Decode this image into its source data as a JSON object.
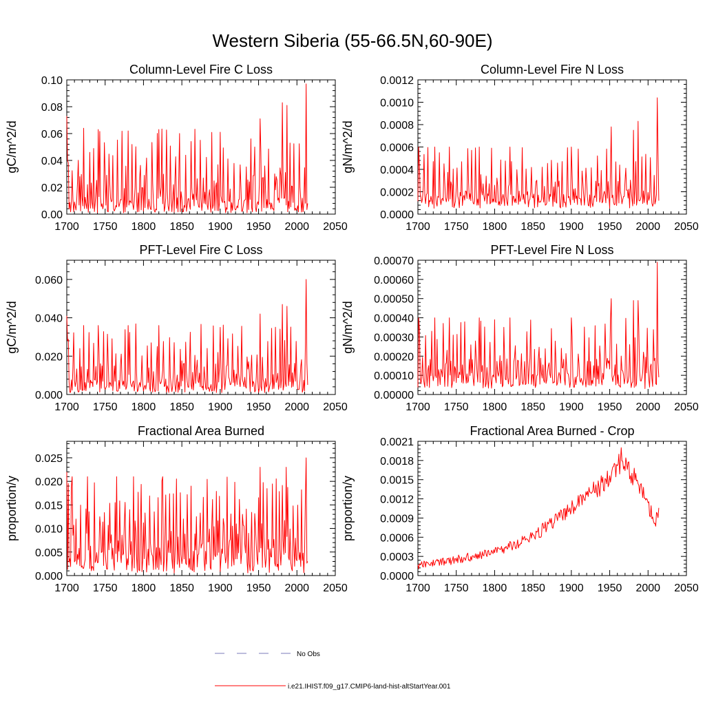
{
  "figure_title": "Western Siberia (55-66.5N,60-90E)",
  "colors": {
    "model": "#ff0000",
    "obs": "#7a7ab8",
    "axis": "#000000"
  },
  "legend": [
    {
      "label": "No Obs",
      "style": "dashed",
      "color": "#7a7ab8"
    },
    {
      "label": "i.e21.IHIST.f09_g17.CMIP6-land-hist-altStartYear.001",
      "style": "solid",
      "color": "#ff0000"
    }
  ],
  "chart_data": [
    {
      "type": "line",
      "title": "Column-Level Fire C Loss",
      "ylabel": "gC/m^2/d",
      "xlim": [
        1700,
        2050
      ],
      "xticks": [
        "1700",
        "1750",
        "1800",
        "1850",
        "1900",
        "1950",
        "2000",
        "2050"
      ],
      "ylim": [
        0,
        0.1
      ],
      "yticks": [
        "0.00",
        "0.02",
        "0.04",
        "0.06",
        "0.08",
        "0.10"
      ],
      "series": [
        {
          "color": "#ff0000",
          "x_range": [
            1700,
            2014
          ],
          "base": [
            0.001,
            0.012
          ],
          "spike_every": 7,
          "spike_range": [
            0.03,
            0.064
          ],
          "peaks": [
            [
              1700,
              0.073
            ],
            [
              1701,
              0.04
            ],
            [
              1722,
              0.064
            ],
            [
              1741,
              0.063
            ],
            [
              1780,
              0.062
            ],
            [
              1820,
              0.063
            ],
            [
              1900,
              0.061
            ],
            [
              1952,
              0.071
            ],
            [
              1981,
              0.083
            ],
            [
              1987,
              0.081
            ],
            [
              2012,
              0.097
            ],
            [
              2014,
              0.008
            ]
          ]
        }
      ]
    },
    {
      "type": "line",
      "title": "Column-Level Fire N Loss",
      "ylabel": "gN/m^2/d",
      "xlim": [
        1700,
        2050
      ],
      "xticks": [
        "1700",
        "1750",
        "1800",
        "1850",
        "1900",
        "1950",
        "2000",
        "2050"
      ],
      "ylim": [
        0,
        0.0012
      ],
      "yticks": [
        "0.0000",
        "0.0002",
        "0.0004",
        "0.0006",
        "0.0008",
        "0.0010",
        "0.0012"
      ],
      "series": [
        {
          "color": "#ff0000",
          "x_range": [
            1700,
            2014
          ],
          "base": [
            5e-05,
            0.00018
          ],
          "spike_every": 7,
          "spike_range": [
            0.0003,
            0.0006
          ],
          "peaks": [
            [
              1701,
              0.0006
            ],
            [
              1722,
              0.0006
            ],
            [
              1741,
              0.0006
            ],
            [
              1780,
              0.0006
            ],
            [
              1820,
              0.0006
            ],
            [
              1900,
              0.0006
            ],
            [
              1952,
              0.00078
            ],
            [
              1981,
              0.00075
            ],
            [
              1987,
              0.00083
            ],
            [
              2012,
              0.00104
            ],
            [
              2014,
              0.00012
            ]
          ]
        }
      ]
    },
    {
      "type": "line",
      "title": "PFT-Level Fire C Loss",
      "ylabel": "gC/m^2/d",
      "xlim": [
        1700,
        2050
      ],
      "xticks": [
        "1700",
        "1750",
        "1800",
        "1850",
        "1900",
        "1950",
        "2000",
        "2050"
      ],
      "ylim": [
        0,
        0.07
      ],
      "yticks": [
        "0.000",
        "0.020",
        "0.040",
        "0.060"
      ],
      "series": [
        {
          "color": "#ff0000",
          "x_range": [
            1700,
            2014
          ],
          "base": [
            0.001,
            0.008
          ],
          "spike_every": 7,
          "spike_range": [
            0.018,
            0.037
          ],
          "peaks": [
            [
              1700,
              0.041
            ],
            [
              1701,
              0.028
            ],
            [
              1722,
              0.036
            ],
            [
              1741,
              0.036
            ],
            [
              1780,
              0.036
            ],
            [
              1820,
              0.036
            ],
            [
              1900,
              0.035
            ],
            [
              1952,
              0.042
            ],
            [
              1981,
              0.047
            ],
            [
              1987,
              0.046
            ],
            [
              2012,
              0.06
            ],
            [
              2014,
              0.005
            ]
          ]
        }
      ]
    },
    {
      "type": "line",
      "title": "PFT-Level Fire N Loss",
      "ylabel": "gN/m^2/d",
      "xlim": [
        1700,
        2050
      ],
      "xticks": [
        "1700",
        "1750",
        "1800",
        "1850",
        "1900",
        "1950",
        "2000",
        "2050"
      ],
      "ylim": [
        0,
        0.0007
      ],
      "yticks": [
        "0.00000",
        "0.00010",
        "0.00020",
        "0.00030",
        "0.00040",
        "0.00050",
        "0.00060",
        "0.00070"
      ],
      "series": [
        {
          "color": "#ff0000",
          "x_range": [
            1700,
            2014
          ],
          "base": [
            3e-05,
            0.00012
          ],
          "spike_every": 7,
          "spike_range": [
            0.0002,
            0.0004
          ],
          "peaks": [
            [
              1701,
              0.0004
            ],
            [
              1722,
              0.0004
            ],
            [
              1741,
              0.0004
            ],
            [
              1780,
              0.0004
            ],
            [
              1820,
              0.0004
            ],
            [
              1900,
              0.0004
            ],
            [
              1952,
              0.0005
            ],
            [
              1981,
              0.00049
            ],
            [
              1987,
              0.00049
            ],
            [
              2012,
              0.00069
            ],
            [
              2014,
              9e-05
            ]
          ]
        }
      ]
    },
    {
      "type": "line",
      "title": "Fractional Area Burned",
      "ylabel": "proportion/y",
      "xlim": [
        1700,
        2050
      ],
      "xticks": [
        "1700",
        "1750",
        "1800",
        "1850",
        "1900",
        "1950",
        "2000",
        "2050"
      ],
      "ylim": [
        0,
        0.0285
      ],
      "yticks": [
        "0.000",
        "0.005",
        "0.010",
        "0.015",
        "0.020",
        "0.025"
      ],
      "series": [
        {
          "color": "#ff0000",
          "x_range": [
            1700,
            2014
          ],
          "base": [
            0.0005,
            0.006
          ],
          "spike_every": 6,
          "spike_range": [
            0.012,
            0.021
          ],
          "peaks": [
            [
              1700,
              0.022
            ],
            [
              1707,
              0.021
            ],
            [
              1727,
              0.021
            ],
            [
              1765,
              0.021
            ],
            [
              1787,
              0.021
            ],
            [
              1825,
              0.021
            ],
            [
              1952,
              0.023
            ],
            [
              1986,
              0.023
            ],
            [
              2012,
              0.025
            ],
            [
              2014,
              0.003
            ]
          ]
        }
      ]
    },
    {
      "type": "line",
      "title": "Fractional Area Burned - Crop",
      "ylabel": "proportion/y",
      "xlim": [
        1700,
        2050
      ],
      "xticks": [
        "1700",
        "1750",
        "1800",
        "1850",
        "1900",
        "1950",
        "2000",
        "2050"
      ],
      "ylim": [
        0,
        0.0021
      ],
      "yticks": [
        "0.0000",
        "0.0003",
        "0.0006",
        "0.0009",
        "0.0012",
        "0.0015",
        "0.0018",
        "0.0021"
      ],
      "series": [
        {
          "color": "#ff0000",
          "trend": [
            [
              1700,
              0.00015
            ],
            [
              1750,
              0.00025
            ],
            [
              1800,
              0.00036
            ],
            [
              1850,
              0.0006
            ],
            [
              1900,
              0.00105
            ],
            [
              1925,
              0.0013
            ],
            [
              1950,
              0.0015
            ],
            [
              1965,
              0.0018
            ],
            [
              1985,
              0.0015
            ],
            [
              2000,
              0.0011
            ],
            [
              2010,
              0.00085
            ],
            [
              2014,
              0.00095
            ]
          ],
          "noise_amp": 0.00012,
          "peaks": [
            [
              1965,
              0.002
            ],
            [
              1962,
              0.0019
            ]
          ]
        }
      ]
    }
  ]
}
